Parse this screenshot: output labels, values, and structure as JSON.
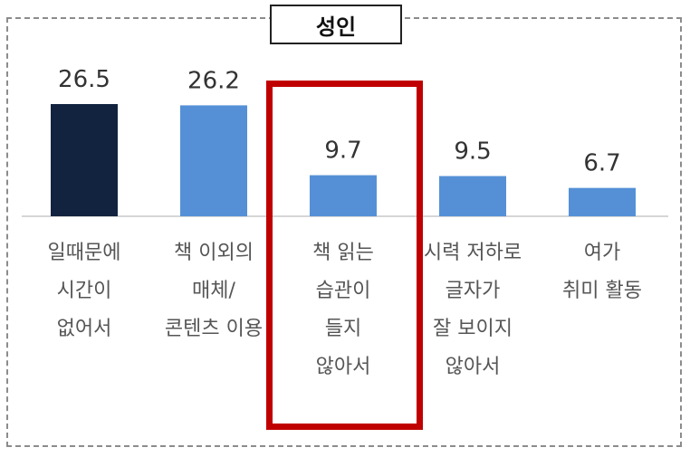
{
  "title": "성인",
  "colors": {
    "first_bar": "#12233f",
    "bars": "#5590d6",
    "highlight": "#c00000",
    "baseline": "#c8c8c8"
  },
  "chart_data": {
    "type": "bar",
    "title": "성인",
    "xlabel": "",
    "ylabel": "",
    "ylim": [
      0,
      30
    ],
    "grid": false,
    "categories": [
      [
        "일때문에",
        "시간이",
        "없어서"
      ],
      [
        "책 이외의",
        "매체/",
        "콘텐츠 이용"
      ],
      [
        "책 읽는",
        "습관이",
        "들지",
        "않아서"
      ],
      [
        "시력 저하로",
        "글자가",
        "잘 보이지",
        "않아서"
      ],
      [
        "여가",
        "취미 활동"
      ]
    ],
    "values": [
      26.5,
      26.2,
      9.7,
      9.5,
      6.7
    ],
    "value_labels": [
      "26.5",
      "26.2",
      "9.7",
      "9.5",
      "6.7"
    ],
    "highlighted_category_index": 2
  }
}
